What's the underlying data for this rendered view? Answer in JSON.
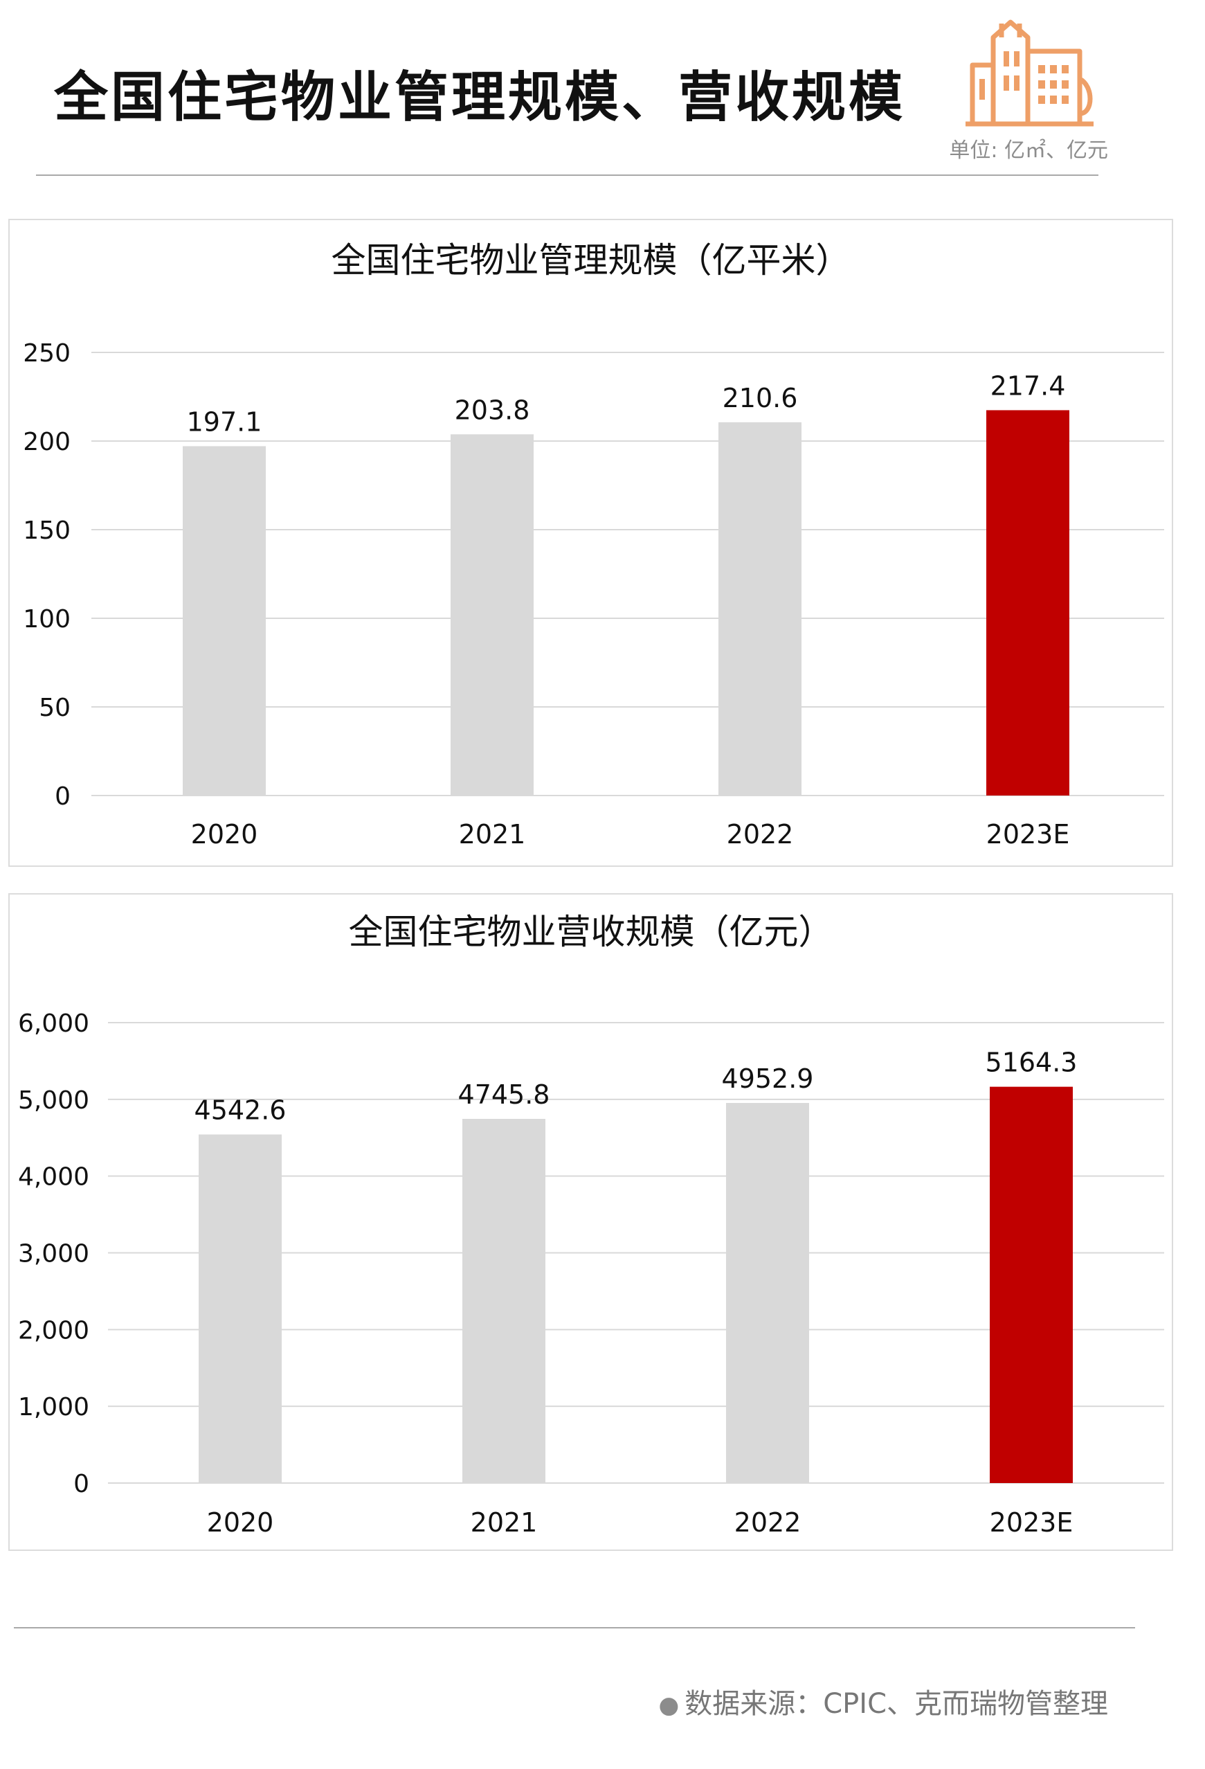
{
  "header": {
    "title": "全国住宅物业管理规模、营收规模",
    "unit": "单位: 亿㎡、亿元"
  },
  "colors": {
    "normal_bar": "#d9d9d9",
    "highlight_bar": "#c00000",
    "gridline": "#d9d9d9",
    "logo": "#ee9f67"
  },
  "icons": {
    "logo": "buildings-icon"
  },
  "footer": {
    "source": "数据来源：CPIC、克而瑞物管整理"
  },
  "chart_data": [
    {
      "type": "bar",
      "title": "全国住宅物业管理规模（亿平米）",
      "categories": [
        "2020",
        "2021",
        "2022",
        "2023E"
      ],
      "values": [
        197.1,
        203.8,
        210.6,
        217.4
      ],
      "value_labels": [
        "197.1",
        "203.8",
        "210.6",
        "217.4"
      ],
      "highlight_index": 3,
      "ylim": [
        0,
        250
      ],
      "yticks": [
        0,
        50,
        100,
        150,
        200,
        250
      ],
      "ytick_labels": [
        "0",
        "50",
        "100",
        "150",
        "200",
        "250"
      ],
      "grid": true,
      "legend": "none"
    },
    {
      "type": "bar",
      "title": "全国住宅物业营收规模（亿元）",
      "categories": [
        "2020",
        "2021",
        "2022",
        "2023E"
      ],
      "values": [
        4542.6,
        4745.8,
        4952.9,
        5164.3
      ],
      "value_labels": [
        "4542.6",
        "4745.8",
        "4952.9",
        "5164.3"
      ],
      "highlight_index": 3,
      "ylim": [
        0,
        6000
      ],
      "yticks": [
        0,
        1000,
        2000,
        3000,
        4000,
        5000,
        6000
      ],
      "ytick_labels": [
        "0",
        "1,000",
        "2,000",
        "3,000",
        "4,000",
        "5,000",
        "6,000"
      ],
      "grid": true,
      "legend": "none"
    }
  ]
}
